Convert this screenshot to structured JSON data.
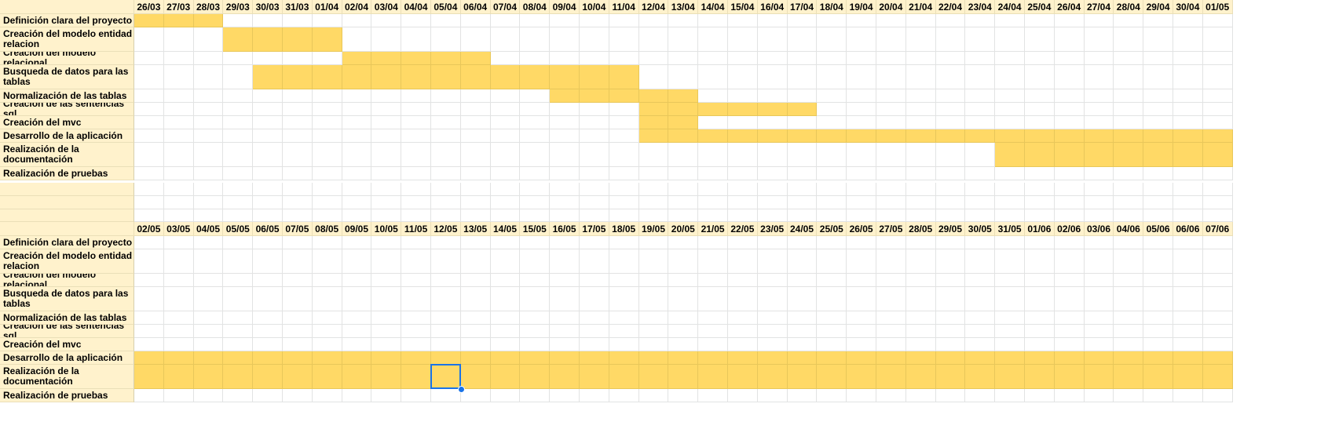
{
  "sheet": {
    "fill_color": "#ffd966",
    "header_color": "#fff2cc",
    "selection_color": "#1a73e8",
    "selection": {
      "block": 1,
      "task_index": 8,
      "date_index": 10
    }
  },
  "tasks": [
    "Definición clara del proyecto",
    "Creación del modelo entidad relacion",
    "Creación del modelo relacional",
    "Busqueda de datos para las tablas",
    "Normalización de las tablas",
    "Creación de las sentencias sql",
    "Creación del mvc",
    "Desarrollo de la aplicación",
    "Realización de la documentación",
    "Realización de pruebas"
  ],
  "blocks": [
    {
      "dates": [
        "26/03",
        "27/03",
        "28/03",
        "29/03",
        "30/03",
        "31/03",
        "01/04",
        "02/04",
        "03/04",
        "04/04",
        "05/04",
        "06/04",
        "07/04",
        "08/04",
        "09/04",
        "10/04",
        "11/04",
        "12/04",
        "13/04",
        "14/04",
        "15/04",
        "16/04",
        "17/04",
        "18/04",
        "19/04",
        "20/04",
        "21/04",
        "22/04",
        "23/04",
        "24/04",
        "25/04",
        "26/04",
        "27/04",
        "28/04",
        "29/04",
        "30/04",
        "01/05"
      ],
      "bars": [
        [
          0,
          3
        ],
        [
          3,
          7
        ],
        [
          7,
          12
        ],
        [
          4,
          17
        ],
        [
          14,
          19
        ],
        [
          17,
          23
        ],
        [
          17,
          19
        ],
        [
          17,
          37
        ],
        [
          29,
          37
        ],
        null
      ]
    },
    {
      "dates": [
        "02/05",
        "03/05",
        "04/05",
        "05/05",
        "06/05",
        "07/05",
        "08/05",
        "09/05",
        "10/05",
        "11/05",
        "12/05",
        "13/05",
        "14/05",
        "15/05",
        "16/05",
        "17/05",
        "18/05",
        "19/05",
        "20/05",
        "21/05",
        "22/05",
        "23/05",
        "24/05",
        "25/05",
        "26/05",
        "27/05",
        "28/05",
        "29/05",
        "30/05",
        "31/05",
        "01/06",
        "02/06",
        "03/06",
        "04/06",
        "05/06",
        "06/06",
        "07/06"
      ],
      "bars": [
        null,
        null,
        null,
        null,
        null,
        null,
        null,
        [
          0,
          37
        ],
        [
          0,
          37
        ],
        null
      ]
    }
  ]
}
